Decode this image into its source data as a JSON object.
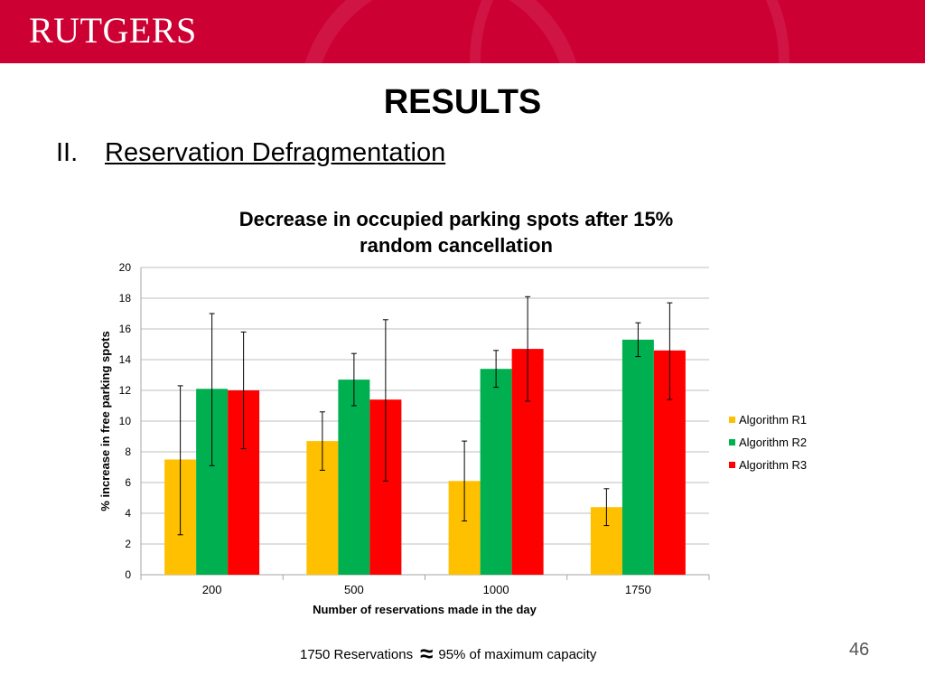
{
  "header": {
    "logo_text": "RUTGERS"
  },
  "slide": {
    "title": "RESULTS",
    "section_number": "II.",
    "section_title": "Reservation Defragmentation",
    "footnote_left": "1750 Reservations",
    "footnote_symbol": "≈",
    "footnote_right": "95% of maximum capacity",
    "page_number": "46"
  },
  "colors": {
    "banner": "#cc0033",
    "series": [
      "#ffc000",
      "#00b050",
      "#ff0000"
    ],
    "gridline": "#bfbfbf",
    "axis": "#a6a6a6",
    "error_bar": "#000000"
  },
  "chart_data": {
    "type": "bar",
    "title_lines": [
      "Decrease in occupied parking spots after 15%",
      "random cancellation"
    ],
    "xlabel": "Number of reservations made in the day",
    "ylabel": "% increase in free parking spots",
    "categories": [
      "200",
      "500",
      "1000",
      "1750"
    ],
    "ylim": [
      0,
      20
    ],
    "yticks": [
      0,
      2,
      4,
      6,
      8,
      10,
      12,
      14,
      16,
      18,
      20
    ],
    "grid": true,
    "legend_position": "right",
    "series": [
      {
        "name": "Algorithm R1",
        "values": [
          7.5,
          8.7,
          6.1,
          4.4
        ],
        "error_low": [
          2.6,
          6.8,
          3.5,
          3.2
        ],
        "error_high": [
          12.3,
          10.6,
          8.7,
          5.6
        ]
      },
      {
        "name": "Algorithm R2",
        "values": [
          12.1,
          12.7,
          13.4,
          15.3
        ],
        "error_low": [
          7.1,
          11.0,
          12.2,
          14.2
        ],
        "error_high": [
          17.0,
          14.4,
          14.6,
          16.4
        ]
      },
      {
        "name": "Algorithm R3",
        "values": [
          12.0,
          11.4,
          14.7,
          14.6
        ],
        "error_low": [
          8.2,
          6.1,
          11.3,
          11.4
        ],
        "error_high": [
          15.8,
          16.6,
          18.1,
          17.7
        ]
      }
    ]
  }
}
